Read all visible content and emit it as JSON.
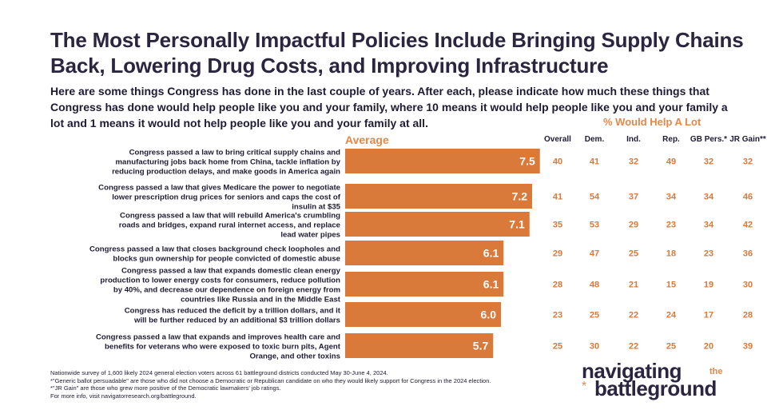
{
  "title": "The Most Personally Impactful Policies Include Bringing Supply Chains Back, Lowering Drug Costs, and Improving Infrastructure",
  "subtitle": "Here are some things Congress has done in the last couple of years. After each, please indicate how much these things that Congress has done would help people like you and your family, where 10 means it would help people like you and your family a lot and 1 means it would not help people like you and your family at all.",
  "pct_header": "% Would Help A Lot",
  "avg_label": "Average",
  "columns": [
    "Overall",
    "Dem.",
    "Ind.",
    "Rep.",
    "GB Pers.*",
    "JR Gain**"
  ],
  "chart_data": {
    "type": "bar",
    "orientation": "horizontal",
    "title": "Average",
    "xlim": [
      0,
      10
    ],
    "bar_color": "#d9793a",
    "categories": [
      "Congress passed a law to bring critical supply chains and manufacturing jobs back home from China, tackle inflation by reducing production delays, and make goods in America again",
      "Congress passed a law that gives Medicare the power to negotiate lower prescription drug prices for seniors and caps the cost of insulin at $35",
      "Congress passed a law that will rebuild America's crumbling roads and bridges, expand rural internet access, and replace lead water pipes",
      "Congress passed a law that closes background check loopholes and blocks gun ownership for people convicted of domestic abuse",
      "Congress passed a law that expands domestic clean energy production to lower energy costs for consumers, reduce pollution by 40%, and decrease our dependence on foreign energy from countries like Russia and in the Middle East",
      "Congress has reduced the deficit by a trillion dollars, and it will be further reduced by an additional $3 trillion dollars",
      "Congress passed a law that expands and improves health care and benefits for veterans who were exposed to toxic burn pits, Agent Orange, and other toxins"
    ],
    "values": [
      7.5,
      7.2,
      7.1,
      6.1,
      6.1,
      6.0,
      5.7
    ],
    "value_labels": [
      "7.5",
      "7.2",
      "7.1",
      "6.1",
      "6.1",
      "6.0",
      "5.7"
    ],
    "table": [
      [
        40,
        41,
        32,
        49,
        32,
        32
      ],
      [
        41,
        54,
        37,
        34,
        34,
        46
      ],
      [
        35,
        53,
        29,
        23,
        34,
        42
      ],
      [
        29,
        47,
        25,
        18,
        23,
        36
      ],
      [
        28,
        48,
        21,
        15,
        19,
        30
      ],
      [
        23,
        25,
        22,
        24,
        17,
        28
      ],
      [
        25,
        30,
        22,
        25,
        20,
        39
      ]
    ]
  },
  "footnotes": [
    "Nationwide survey of 1,600 likely 2024 general election voters across 61 battleground districts conducted May 30-June 4, 2024.",
    "*\"Generic ballot persuadable\" are those who did not choose a Democratic or Republican candidate on who they would likely support for Congress in the 2024 election.",
    "*\"JR Gain\" are those who grew more positive of the Democratic lawmakers' job ratings.",
    "For more info, visit navigatorresearch.org/battleground."
  ],
  "logo": {
    "line1": "navigating",
    "the": "the",
    "star": "*",
    "line2": "battleground"
  },
  "colors": {
    "accent": "#e2884a",
    "bar": "#d9793a",
    "title": "#2b2540"
  }
}
